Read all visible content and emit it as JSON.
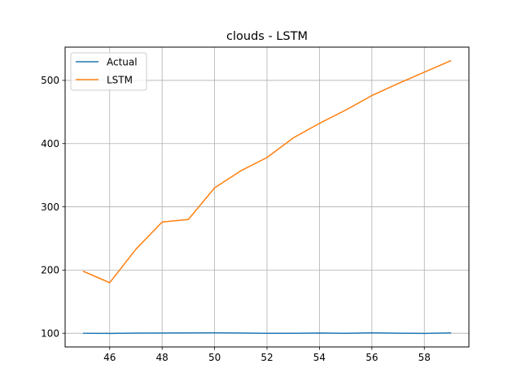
{
  "chart_data": {
    "type": "line",
    "title": "clouds - LSTM",
    "xlabel": "",
    "ylabel": "",
    "x": [
      45,
      46,
      47,
      48,
      49,
      50,
      51,
      52,
      53,
      54,
      55,
      56,
      57,
      58,
      59
    ],
    "series": [
      {
        "name": "Actual",
        "color": "#1f77b4",
        "values": [
          100,
          99.8,
          100.3,
          100.4,
          100.6,
          100.7,
          100.4,
          100.0,
          99.9,
          100.4,
          99.9,
          100.7,
          100.1,
          99.8,
          100.5
        ]
      },
      {
        "name": "LSTM",
        "color": "#ff7f0e",
        "values": [
          198,
          180,
          233,
          276,
          280,
          330,
          357,
          378,
          409,
          432,
          453,
          476,
          495,
          513,
          531
        ]
      }
    ],
    "xlim": [
      44.3,
      59.7
    ],
    "ylim": [
      78.4,
      552.6
    ],
    "xticks": [
      "46",
      "48",
      "50",
      "52",
      "54",
      "56",
      "58"
    ],
    "yticks": [
      "100",
      "200",
      "300",
      "400",
      "500"
    ],
    "grid": true,
    "legend_position": "top-left"
  }
}
